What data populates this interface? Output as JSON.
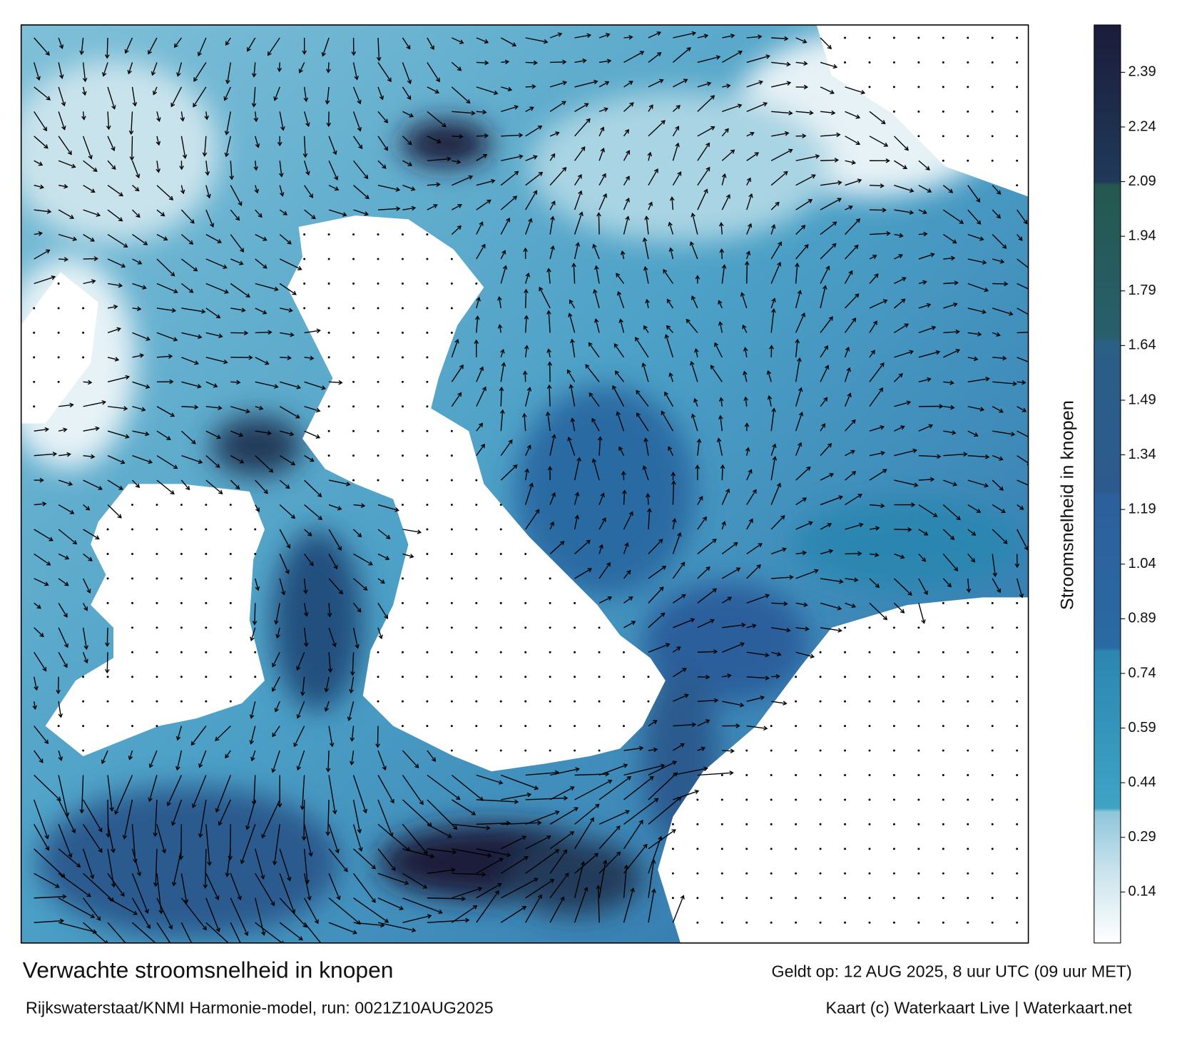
{
  "map": {
    "legend": {
      "title": "Stroomsnelheid in knopen",
      "range": [
        0,
        2.52
      ],
      "ticks": [
        0.14,
        0.29,
        0.44,
        0.59,
        0.74,
        0.89,
        1.04,
        1.19,
        1.34,
        1.49,
        1.64,
        1.79,
        1.94,
        2.09,
        2.24,
        2.39
      ],
      "stops": [
        {
          "value": 0,
          "color": "#ffffff"
        },
        {
          "value": 0.2,
          "color": "#c9e3ec"
        },
        {
          "value": 0.36,
          "color": "#8ec6da"
        },
        {
          "value": 0.37,
          "color": "#3fa3c6"
        },
        {
          "value": 0.8,
          "color": "#2c86b0"
        },
        {
          "value": 0.81,
          "color": "#2a6aa3"
        },
        {
          "value": 1.23,
          "color": "#2c5f9c"
        },
        {
          "value": 1.24,
          "color": "#2c5a8e"
        },
        {
          "value": 1.65,
          "color": "#2a5f86"
        },
        {
          "value": 1.66,
          "color": "#285f6c"
        },
        {
          "value": 2.08,
          "color": "#24584f"
        },
        {
          "value": 2.09,
          "color": "#203a5a"
        },
        {
          "value": 2.52,
          "color": "#1b1c3a"
        }
      ]
    }
  },
  "footer": {
    "title": "Verwachte stroomsnelheid in knopen",
    "valid": "Geldt op: 12 AUG 2025, 8 uur UTC (09 uur MET)",
    "source": "Rijkswaterstaat/KNMI Harmonie-model, run: 0021Z10AUG2025",
    "credit": "Kaart (c) Waterkaart Live | Waterkaart.net"
  }
}
